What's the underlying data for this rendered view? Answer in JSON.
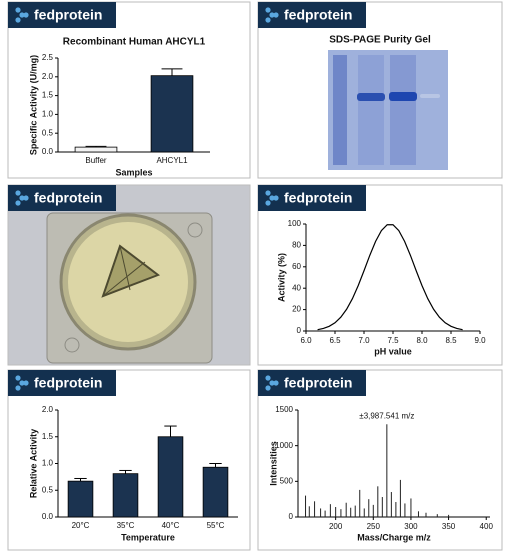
{
  "panels": [
    {
      "brand": "fedprotein"
    },
    {
      "brand": "fedprotein"
    },
    {
      "brand": "fedprotein"
    },
    {
      "brand": "fedprotein"
    },
    {
      "brand": "fedprotein"
    },
    {
      "brand": "fedprotein"
    }
  ],
  "images": [
    {
      "title": "SDS-PAGE Purity Gel"
    }
  ],
  "chart_data": [
    {
      "type": "bar",
      "title": "Recombinant Human AHCYL1",
      "y_label": "Specific Activity (U/mg)",
      "x_label": "Samples",
      "categories": [
        "Buffer",
        "AHCYL1"
      ],
      "values": [
        0.13,
        2.03
      ],
      "errors": [
        0.02,
        0.18
      ],
      "colors": [
        "#f2f2f2",
        "#1b3350"
      ],
      "ylim": [
        0,
        2.5
      ],
      "yticks": [
        {
          "value": 0,
          "label": "0.0"
        },
        0.5,
        {
          "value": 1,
          "label": "1.0"
        },
        1.5,
        {
          "value": 2,
          "label": "2.0"
        },
        2.5
      ]
    },
    {
      "type": "line",
      "y_label": "Activity (%)",
      "x_label": "pH value",
      "color": "#000000",
      "x": [
        6.2,
        6.3,
        6.4,
        6.5,
        6.6,
        6.7,
        6.8,
        6.9,
        7.0,
        7.1,
        7.2,
        7.3,
        7.4,
        7.5,
        7.6,
        7.7,
        7.8,
        7.9,
        8.0,
        8.1,
        8.2,
        8.3,
        8.4,
        8.5,
        8.6,
        8.7
      ],
      "values": [
        1.2,
        2.4,
        4.4,
        7.7,
        12.9,
        20.3,
        30.2,
        42.4,
        56.3,
        70.7,
        83.8,
        93.8,
        99.3,
        99.3,
        93.8,
        83.8,
        70.7,
        56.3,
        42.4,
        30.2,
        20.3,
        12.9,
        7.7,
        4.4,
        2.4,
        1.2
      ],
      "xlim": [
        6.0,
        9.0
      ],
      "xticks": [
        {
          "value": 6,
          "label": "6.0"
        },
        6.5,
        {
          "value": 7,
          "label": "7.0"
        },
        7.5,
        {
          "value": 8,
          "label": "8.0"
        },
        8.5,
        {
          "value": 9,
          "label": "9.0"
        }
      ],
      "ylim": [
        0,
        100
      ],
      "yticks": [
        0,
        20,
        40,
        60,
        80,
        100
      ]
    },
    {
      "type": "bar",
      "y_label": "Relative Activity",
      "x_label": "Temperature",
      "color": "#1b3350",
      "categories": [
        "20°C",
        "35°C",
        "40°C",
        "55°C"
      ],
      "values": [
        0.67,
        0.81,
        1.5,
        0.93
      ],
      "errors": [
        0.05,
        0.06,
        0.2,
        0.07
      ],
      "ylim": [
        0,
        2.0
      ],
      "yticks": [
        {
          "value": 0,
          "label": "0.0"
        },
        0.5,
        {
          "value": 1,
          "label": "1.0"
        },
        1.5,
        {
          "value": 2,
          "label": "2.0"
        }
      ]
    },
    {
      "type": "stem",
      "y_label": "Intensities",
      "x_label": "Mass/Charge m/z",
      "annotation": "±3,987.541 m/z",
      "color": "#222222",
      "x": [
        160,
        165,
        172,
        180,
        186,
        193,
        200,
        207,
        214,
        220,
        226,
        232,
        238,
        244,
        250,
        256,
        262,
        268,
        274,
        280,
        286,
        292,
        300,
        310,
        320,
        335,
        350
      ],
      "values": [
        300,
        150,
        220,
        120,
        90,
        180,
        140,
        110,
        200,
        130,
        160,
        380,
        120,
        250,
        170,
        430,
        280,
        1300,
        350,
        210,
        520,
        190,
        260,
        80,
        60,
        40,
        30
      ],
      "xlim": [
        150,
        405
      ],
      "xticks": [
        200,
        250,
        300,
        350,
        400
      ],
      "ylim": [
        0,
        1500
      ],
      "yticks": [
        0,
        500,
        1000,
        1500
      ]
    }
  ]
}
